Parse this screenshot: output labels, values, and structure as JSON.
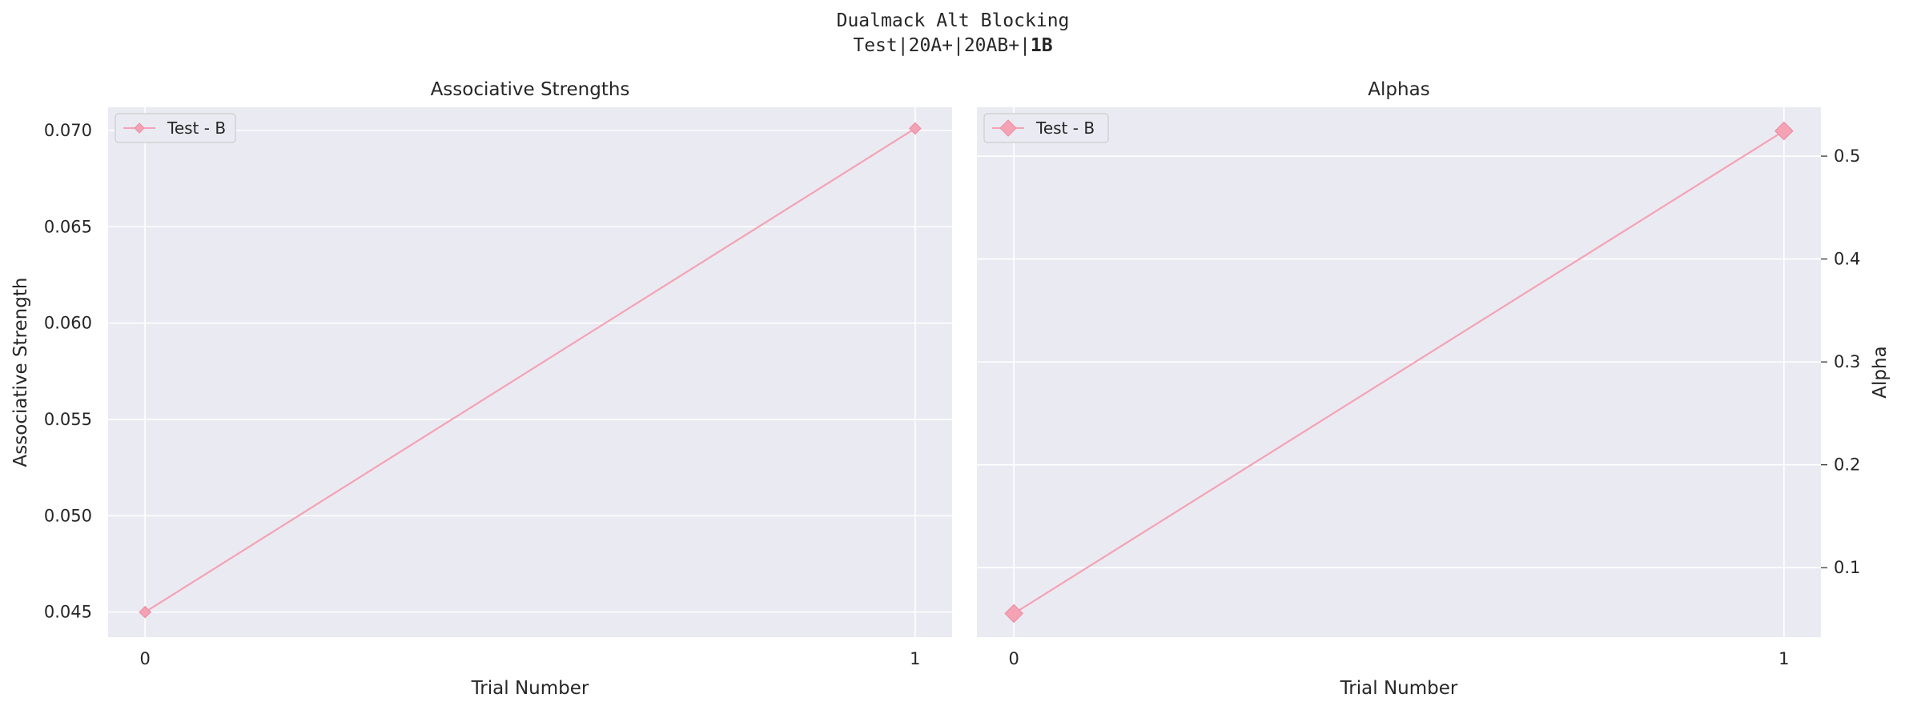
{
  "figure": {
    "suptitle_line1": "Dualmack Alt Blocking",
    "suptitle_line2_prefix": "Test|20A+|20AB+|",
    "suptitle_line2_bold": "1B"
  },
  "colors": {
    "series": "#f4a3b4",
    "marker_edge": "#ec8fa3",
    "axes_bg": "#eaeaf2",
    "grid": "#ffffff",
    "text": "#262626"
  },
  "chart_data": [
    {
      "type": "line",
      "title": "Associative Strengths",
      "xlabel": "Trial Number",
      "ylabel": "Associative Strength",
      "y_axis_side": "left",
      "x": [
        0,
        1
      ],
      "x_ticks": [
        "0",
        "1"
      ],
      "xlim": [
        -0.048,
        1.048
      ],
      "ylim": [
        0.0437,
        0.0712
      ],
      "y_ticks": [
        0.045,
        0.05,
        0.055,
        0.06,
        0.065,
        0.07
      ],
      "y_tick_labels": [
        "0.045",
        "0.050",
        "0.055",
        "0.060",
        "0.065",
        "0.070"
      ],
      "grid": true,
      "legend_position": "upper left",
      "marker": "diamond",
      "series": [
        {
          "name": "Test - B",
          "values": [
            0.045,
            0.0701
          ]
        }
      ]
    },
    {
      "type": "line",
      "title": "Alphas",
      "xlabel": "Trial Number",
      "ylabel": "Alpha",
      "y_axis_side": "right",
      "x": [
        0,
        1
      ],
      "x_ticks": [
        "0",
        "1"
      ],
      "xlim": [
        -0.048,
        1.048
      ],
      "ylim": [
        0.0325,
        0.5475
      ],
      "y_ticks": [
        0.1,
        0.2,
        0.3,
        0.4,
        0.5
      ],
      "y_tick_labels": [
        "0.1",
        "0.2",
        "0.3",
        "0.4",
        "0.5"
      ],
      "grid": true,
      "legend_position": "upper left",
      "marker": "diamond",
      "series": [
        {
          "name": "Test - B",
          "values": [
            0.0555,
            0.5245
          ]
        }
      ]
    }
  ]
}
